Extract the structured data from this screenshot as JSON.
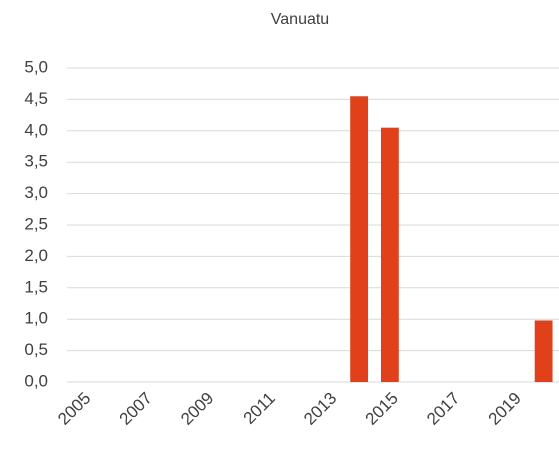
{
  "chart_data": {
    "type": "bar",
    "title": "Vanuatu",
    "categories": [
      "2005",
      null,
      "2007",
      null,
      "2009",
      null,
      "2011",
      null,
      "2013",
      null,
      "2015",
      null,
      "2017",
      null,
      "2019",
      null
    ],
    "values": [
      0,
      0,
      0,
      0,
      0,
      0,
      0,
      0,
      0,
      4.55,
      4.05,
      0,
      0,
      0,
      0,
      0.98
    ],
    "color": "#e0401a",
    "ylim": [
      0,
      5
    ],
    "yticks": [
      {
        "value": 0,
        "label": "0,0"
      },
      {
        "value": 0.5,
        "label": "0,5"
      },
      {
        "value": 1,
        "label": "1,0"
      },
      {
        "value": 1.5,
        "label": "1,5"
      },
      {
        "value": 2,
        "label": "2,0"
      },
      {
        "value": 2.5,
        "label": "2,5"
      },
      {
        "value": 3,
        "label": "3,0"
      },
      {
        "value": 3.5,
        "label": "3,5"
      },
      {
        "value": 4,
        "label": "4,0"
      },
      {
        "value": 4.5,
        "label": "4,5"
      },
      {
        "value": 5,
        "label": "5,0"
      }
    ],
    "grid": true
  }
}
